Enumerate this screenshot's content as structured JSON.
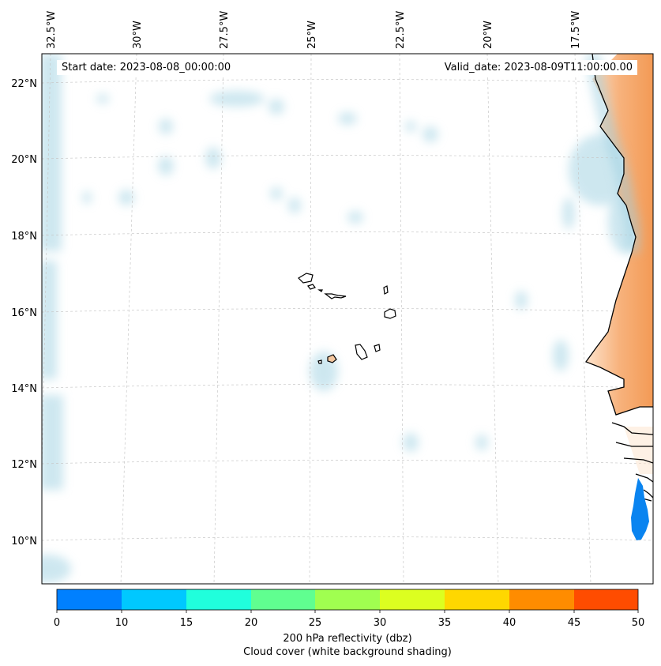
{
  "header": {
    "start_date": "Start date: 2023-08-08_00:00:00",
    "valid_date": "Valid_date: 2023-08-09T11:00:00.00"
  },
  "map": {
    "lon_labels": [
      "32.5°W",
      "30°W",
      "27.5°W",
      "25°W",
      "22.5°W",
      "20°W",
      "17.5°W"
    ],
    "lat_labels": [
      "22°N",
      "20°N",
      "18°N",
      "16°N",
      "14°N",
      "12°N",
      "10°N"
    ],
    "gridlines": "dashed",
    "colors": {
      "land_dry": "#f5a262",
      "cloud": "#add8e6",
      "coastline": "#000000",
      "reflectivity_blob": "#0a84f0"
    }
  },
  "colorbar": {
    "ticks": [
      "0",
      "10",
      "15",
      "20",
      "25",
      "30",
      "35",
      "40",
      "45",
      "50"
    ],
    "colors": [
      "#0080ff",
      "#00c8ff",
      "#20ffdc",
      "#60ff90",
      "#a0ff50",
      "#dcff20",
      "#ffd700",
      "#ff8c00",
      "#ff4c00"
    ],
    "label": "200 hPa reflectivity (dbz)",
    "sublabel": "Cloud cover (white background shading)"
  }
}
